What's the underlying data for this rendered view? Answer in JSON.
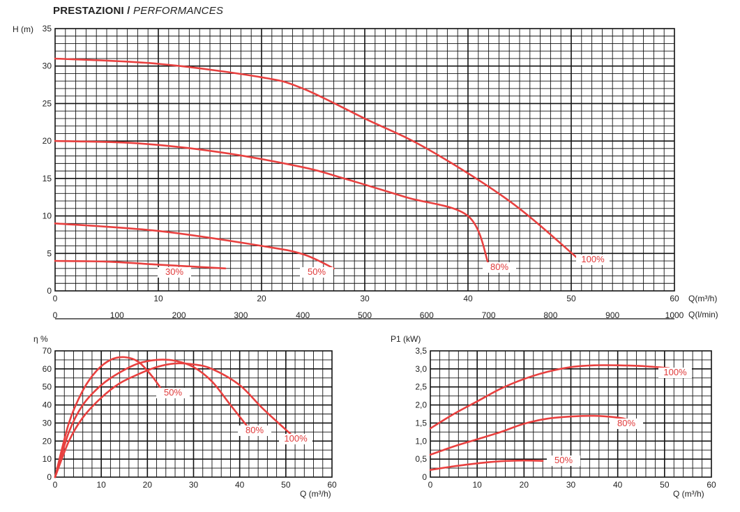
{
  "header": {
    "title_it": "PRESTAZIONI",
    "title_sep": " / ",
    "title_en": "PERFORMANCES"
  },
  "colors": {
    "curve": "#e8403f",
    "grid": "#111111",
    "label_text": "#e03a3a"
  },
  "chart_data": [
    {
      "id": "head",
      "type": "line",
      "title": "",
      "ylabel": "H (m)",
      "xlabel": "Q(m³/h)",
      "xlabel2": "Q(l/min)",
      "xlim": [
        0,
        60
      ],
      "ylim": [
        0,
        35
      ],
      "x_ticks": [
        "0",
        "10",
        "20",
        "30",
        "40",
        "50",
        "60"
      ],
      "x2_ticks": [
        "0",
        "100",
        "200",
        "300",
        "400",
        "500",
        "600",
        "700",
        "800",
        "900",
        "1000"
      ],
      "y_ticks": [
        "0",
        "5",
        "10",
        "15",
        "20",
        "25",
        "30",
        "35"
      ],
      "grid": true,
      "series": [
        {
          "name": "30%",
          "x": [
            0,
            5,
            10,
            16.5
          ],
          "y": [
            4,
            3.9,
            3.5,
            3
          ]
        },
        {
          "name": "50%",
          "x": [
            0,
            10,
            20,
            24,
            27
          ],
          "y": [
            9,
            8,
            6,
            4.9,
            3
          ]
        },
        {
          "name": "80%",
          "x": [
            0,
            8,
            16,
            24,
            28,
            34,
            40,
            42
          ],
          "y": [
            20,
            19.7,
            18.5,
            16.5,
            15,
            12.5,
            10,
            3.5
          ]
        },
        {
          "name": "100%",
          "x": [
            0,
            10,
            20,
            24,
            30,
            36,
            44,
            50.5
          ],
          "y": [
            31,
            30.3,
            28.5,
            27,
            23,
            19,
            12,
            4.5
          ]
        }
      ]
    },
    {
      "id": "efficiency",
      "type": "line",
      "title": "",
      "ylabel": "η %",
      "xlabel": "Q (m³/h)",
      "xlim": [
        0,
        60
      ],
      "ylim": [
        0,
        70
      ],
      "x_ticks": [
        "0",
        "10",
        "20",
        "30",
        "40",
        "50",
        "60"
      ],
      "y_ticks": [
        "0",
        "10",
        "20",
        "30",
        "40",
        "50",
        "60",
        "70"
      ],
      "grid": true,
      "series": [
        {
          "name": "50%",
          "x": [
            0,
            3,
            6,
            9,
            12,
            15,
            18,
            21,
            23.5
          ],
          "y": [
            0,
            30,
            48,
            59,
            65,
            66.5,
            64,
            56,
            47
          ]
        },
        {
          "name": "80%",
          "x": [
            0,
            3,
            6,
            10,
            14,
            18,
            22,
            26,
            30,
            34,
            38,
            42
          ],
          "y": [
            0,
            25,
            40,
            51,
            58,
            63,
            65,
            64.5,
            61,
            53,
            40,
            27
          ]
        },
        {
          "name": "100%",
          "x": [
            0,
            3,
            6,
            10,
            14,
            18,
            22,
            26,
            30,
            34,
            40,
            45,
            51
          ],
          "y": [
            0,
            20,
            33,
            44,
            52,
            57,
            61,
            63,
            62.5,
            60,
            51,
            38,
            24
          ]
        }
      ]
    },
    {
      "id": "power",
      "type": "line",
      "title": "",
      "ylabel": "P1 (kW)",
      "xlabel": "Q (m³/h)",
      "xlim": [
        0,
        60
      ],
      "ylim": [
        0,
        3.5
      ],
      "x_ticks": [
        "0",
        "10",
        "20",
        "30",
        "40",
        "50",
        "60"
      ],
      "y_ticks": [
        "0",
        "0,5",
        "1,0",
        "1,5",
        "2,0",
        "2,5",
        "3,0",
        "3,5"
      ],
      "grid": true,
      "series": [
        {
          "name": "50%",
          "x": [
            0,
            5,
            10,
            15,
            20,
            24
          ],
          "y": [
            0.2,
            0.3,
            0.38,
            0.44,
            0.46,
            0.45
          ]
        },
        {
          "name": "80%",
          "x": [
            0,
            5,
            10,
            15,
            20,
            25,
            30,
            35,
            40,
            42
          ],
          "y": [
            0.62,
            0.85,
            1.05,
            1.25,
            1.48,
            1.62,
            1.68,
            1.7,
            1.65,
            1.6
          ]
        },
        {
          "name": "100%",
          "x": [
            0,
            5,
            10,
            15,
            20,
            25,
            30,
            35,
            40,
            45,
            51
          ],
          "y": [
            1.35,
            1.75,
            2.1,
            2.45,
            2.72,
            2.92,
            3.05,
            3.1,
            3.1,
            3.08,
            3.02
          ]
        }
      ]
    }
  ]
}
